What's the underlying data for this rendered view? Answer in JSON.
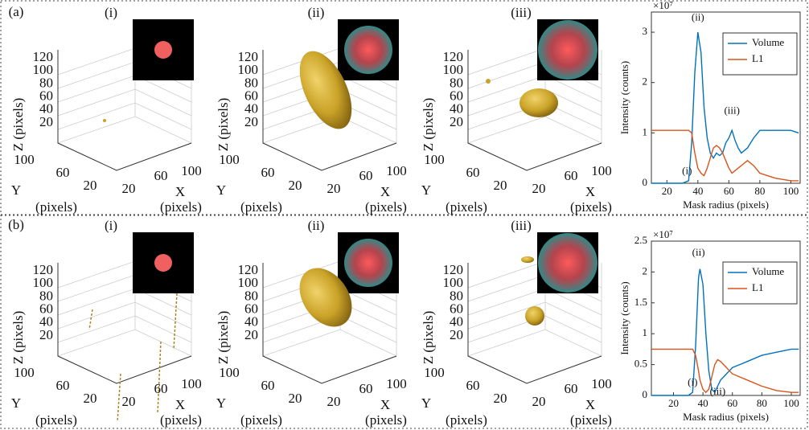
{
  "figure": {
    "rows": [
      {
        "label": "(a)",
        "views": [
          "(i)",
          "(ii)",
          "(iii)"
        ]
      },
      {
        "label": "(b)",
        "views": [
          "(i)",
          "(ii)",
          "(iii)"
        ]
      }
    ],
    "axes3d": {
      "zticks": [
        120,
        100,
        80,
        60,
        40,
        20
      ],
      "yticks": [
        100,
        60,
        20
      ],
      "xticks": [
        20,
        60,
        100
      ],
      "z_label": "Z (pixels)",
      "y_label": "Y",
      "x_label": "X",
      "unit_label": "(pixels)"
    }
  },
  "chart_data": [
    {
      "type": "line",
      "y_multiplier": "×10⁷",
      "xlabel": "Mask radius (pixels)",
      "ylabel": "Intensity (counts)",
      "x": [
        10,
        20,
        30,
        34,
        36,
        38,
        40,
        42,
        44,
        46,
        48,
        50,
        52,
        54,
        56,
        58,
        60,
        62,
        64,
        66,
        68,
        70,
        72,
        76,
        80,
        90,
        100,
        105
      ],
      "series": [
        {
          "name": "Volume",
          "color": "#0072bd",
          "values": [
            0,
            0,
            0,
            0.05,
            0.8,
            2.2,
            3.0,
            2.6,
            1.5,
            0.9,
            0.6,
            0.5,
            0.6,
            0.55,
            0.6,
            0.8,
            0.9,
            1.05,
            0.85,
            0.7,
            0.6,
            0.65,
            0.7,
            0.9,
            1.05,
            1.05,
            1.05,
            1.0
          ]
        },
        {
          "name": "L1",
          "color": "#d95319",
          "values": [
            1.05,
            1.05,
            1.05,
            1.05,
            1.0,
            0.6,
            0.3,
            0.2,
            0.15,
            0.3,
            0.5,
            0.7,
            0.75,
            0.7,
            0.6,
            0.45,
            0.3,
            0.2,
            0.25,
            0.3,
            0.35,
            0.4,
            0.45,
            0.35,
            0.2,
            0.1,
            0.05,
            0.05
          ]
        }
      ],
      "xlim": [
        10,
        106
      ],
      "xticks": [
        20,
        40,
        60,
        80,
        100
      ],
      "ylim": [
        0,
        3.4
      ],
      "yticks": [
        0,
        1,
        2,
        3
      ],
      "legend": "upper right",
      "annotations": [
        "(i)",
        "(ii)",
        "(iii)"
      ]
    },
    {
      "type": "line",
      "y_multiplier": "×10⁷",
      "xlabel": "Mask radius (pixels)",
      "ylabel": "Intensity (counts)",
      "x": [
        5,
        10,
        20,
        30,
        33,
        35,
        37,
        38,
        40,
        42,
        44,
        46,
        48,
        50,
        52,
        54,
        56,
        58,
        60,
        65,
        70,
        80,
        90,
        100,
        105
      ],
      "series": [
        {
          "name": "Volume",
          "color": "#0072bd",
          "values": [
            0,
            0,
            0,
            0,
            0.05,
            0.8,
            1.9,
            2.05,
            1.8,
            1.0,
            0.4,
            0.1,
            0.05,
            0.15,
            0.25,
            0.3,
            0.35,
            0.4,
            0.45,
            0.5,
            0.55,
            0.65,
            0.7,
            0.75,
            0.75
          ]
        },
        {
          "name": "L1",
          "color": "#d95319",
          "values": [
            0.75,
            0.75,
            0.75,
            0.75,
            0.75,
            0.65,
            0.4,
            0.25,
            0.1,
            0.05,
            0.1,
            0.3,
            0.5,
            0.58,
            0.55,
            0.5,
            0.45,
            0.4,
            0.35,
            0.3,
            0.25,
            0.15,
            0.08,
            0.05,
            0.05
          ]
        }
      ],
      "xlim": [
        5,
        106
      ],
      "xticks": [
        20,
        40,
        60,
        80,
        100
      ],
      "ylim": [
        0,
        2.5
      ],
      "yticks": [
        0,
        0.5,
        1,
        1.5,
        2,
        2.5
      ],
      "legend": "upper right",
      "annotations": [
        "(i)",
        "(ii)",
        "(iii)"
      ]
    }
  ]
}
